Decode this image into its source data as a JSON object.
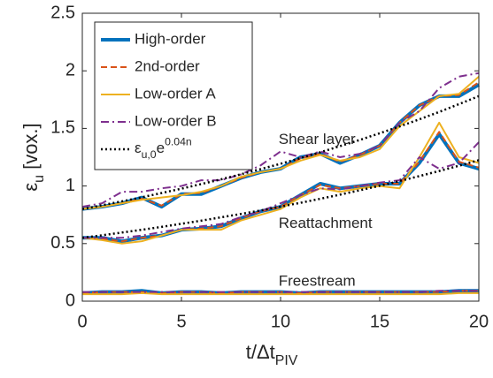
{
  "chart_data": {
    "type": "line",
    "x_label_parts": [
      {
        "text": "t/Δt"
      },
      {
        "text": "PIV",
        "shift": "sub"
      }
    ],
    "y_label_parts": [
      {
        "text": "ε"
      },
      {
        "text": "u",
        "shift": "sub"
      },
      {
        "text": " [vox.]"
      }
    ],
    "x": [
      0,
      1,
      2,
      3,
      4,
      5,
      6,
      7,
      8,
      9,
      10,
      11,
      12,
      13,
      14,
      15,
      16,
      17,
      18,
      19,
      20
    ],
    "xlim": [
      0,
      20
    ],
    "xticks": [
      0,
      5,
      10,
      15,
      20
    ],
    "ylim": [
      0,
      2.5
    ],
    "yticks": [
      0,
      0.5,
      1,
      1.5,
      2,
      2.5
    ],
    "legend": "upper left",
    "annotations": [
      {
        "text": "Shear layer",
        "x": 9.9,
        "y": 1.4
      },
      {
        "text": "Reattachment",
        "x": 9.9,
        "y": 0.67
      },
      {
        "text": "Freestream",
        "x": 9.9,
        "y": 0.17
      }
    ],
    "series": [
      {
        "name": "High-order",
        "color": "#0072BD",
        "style": "solid",
        "width": 4,
        "lines": [
          [
            0.8,
            0.82,
            0.85,
            0.9,
            0.82,
            0.93,
            0.93,
            1.0,
            1.07,
            1.12,
            1.15,
            1.25,
            1.28,
            1.2,
            1.27,
            1.35,
            1.55,
            1.7,
            1.78,
            1.78,
            1.88
          ],
          [
            0.55,
            0.55,
            0.52,
            0.55,
            0.57,
            0.62,
            0.63,
            0.65,
            0.72,
            0.78,
            0.82,
            0.92,
            1.02,
            0.98,
            1.0,
            1.02,
            1.02,
            1.2,
            1.45,
            1.2,
            1.15
          ],
          [
            0.07,
            0.08,
            0.08,
            0.09,
            0.07,
            0.08,
            0.08,
            0.07,
            0.08,
            0.08,
            0.08,
            0.07,
            0.08,
            0.08,
            0.08,
            0.08,
            0.08,
            0.08,
            0.08,
            0.09,
            0.09
          ]
        ]
      },
      {
        "name": "2nd-order",
        "color": "#D95319",
        "style": "dashed",
        "width": 2,
        "lines": [
          [
            0.8,
            0.82,
            0.85,
            0.89,
            0.83,
            0.93,
            0.94,
            1.0,
            1.07,
            1.12,
            1.15,
            1.24,
            1.28,
            1.21,
            1.27,
            1.35,
            1.55,
            1.7,
            1.78,
            1.79,
            1.9
          ],
          [
            0.55,
            0.54,
            0.52,
            0.55,
            0.57,
            0.62,
            0.63,
            0.65,
            0.72,
            0.78,
            0.82,
            0.92,
            1.01,
            0.98,
            1.0,
            1.02,
            1.02,
            1.21,
            1.47,
            1.21,
            1.16
          ],
          [
            0.07,
            0.08,
            0.08,
            0.08,
            0.07,
            0.08,
            0.08,
            0.07,
            0.08,
            0.08,
            0.08,
            0.07,
            0.08,
            0.08,
            0.08,
            0.08,
            0.08,
            0.08,
            0.08,
            0.09,
            0.09
          ]
        ]
      },
      {
        "name": "Low-order A",
        "color": "#EDB120",
        "style": "solid",
        "width": 2,
        "lines": [
          [
            0.8,
            0.82,
            0.85,
            0.88,
            0.9,
            0.92,
            0.95,
            1.0,
            1.08,
            1.12,
            1.15,
            1.22,
            1.27,
            1.22,
            1.25,
            1.32,
            1.52,
            1.65,
            1.78,
            1.8,
            1.95
          ],
          [
            0.55,
            0.53,
            0.5,
            0.52,
            0.57,
            0.62,
            0.62,
            0.62,
            0.7,
            0.75,
            0.8,
            0.9,
            0.98,
            0.95,
            0.98,
            1.0,
            0.98,
            1.25,
            1.55,
            1.25,
            1.2
          ],
          [
            0.06,
            0.06,
            0.06,
            0.07,
            0.06,
            0.06,
            0.06,
            0.06,
            0.06,
            0.06,
            0.06,
            0.06,
            0.06,
            0.06,
            0.06,
            0.06,
            0.06,
            0.06,
            0.06,
            0.07,
            0.07
          ]
        ]
      },
      {
        "name": "Low-order B",
        "color": "#7E2F8E",
        "style": "dashdot",
        "width": 2,
        "lines": [
          [
            0.82,
            0.85,
            0.95,
            0.95,
            0.98,
            1.0,
            1.05,
            1.05,
            1.1,
            1.18,
            1.3,
            1.25,
            1.3,
            1.25,
            1.28,
            1.35,
            1.55,
            1.65,
            1.85,
            1.95,
            1.98
          ],
          [
            0.55,
            0.55,
            0.55,
            0.57,
            0.6,
            0.63,
            0.65,
            0.67,
            0.73,
            0.78,
            0.85,
            0.92,
            0.98,
            0.97,
            1.0,
            1.03,
            1.05,
            1.25,
            1.15,
            1.2,
            1.38
          ],
          [
            0.08,
            0.08,
            0.08,
            0.08,
            0.08,
            0.08,
            0.08,
            0.08,
            0.08,
            0.08,
            0.08,
            0.08,
            0.08,
            0.08,
            0.08,
            0.08,
            0.08,
            0.08,
            0.09,
            0.09,
            0.09
          ]
        ]
      },
      {
        "name_parts": [
          {
            "text": "ε"
          },
          {
            "text": "u,0",
            "shift": "sub"
          },
          {
            "text": "e"
          },
          {
            "text": "0.04n",
            "shift": "super"
          }
        ],
        "color": "#000000",
        "style": "dotted",
        "width": 2.5,
        "lines": [
          [
            0.8,
            0.833,
            0.867,
            0.902,
            0.939,
            0.977,
            1.017,
            1.058,
            1.102,
            1.147,
            1.193,
            1.242,
            1.293,
            1.346,
            1.4,
            1.458,
            1.517,
            1.579,
            1.643,
            1.711,
            1.78
          ],
          [
            0.55,
            0.572,
            0.596,
            0.62,
            0.645,
            0.672,
            0.699,
            0.728,
            0.757,
            0.788,
            0.821,
            0.854,
            0.889,
            0.925,
            0.963,
            1.002,
            1.043,
            1.086,
            1.13,
            1.176,
            1.224
          ]
        ]
      }
    ]
  }
}
